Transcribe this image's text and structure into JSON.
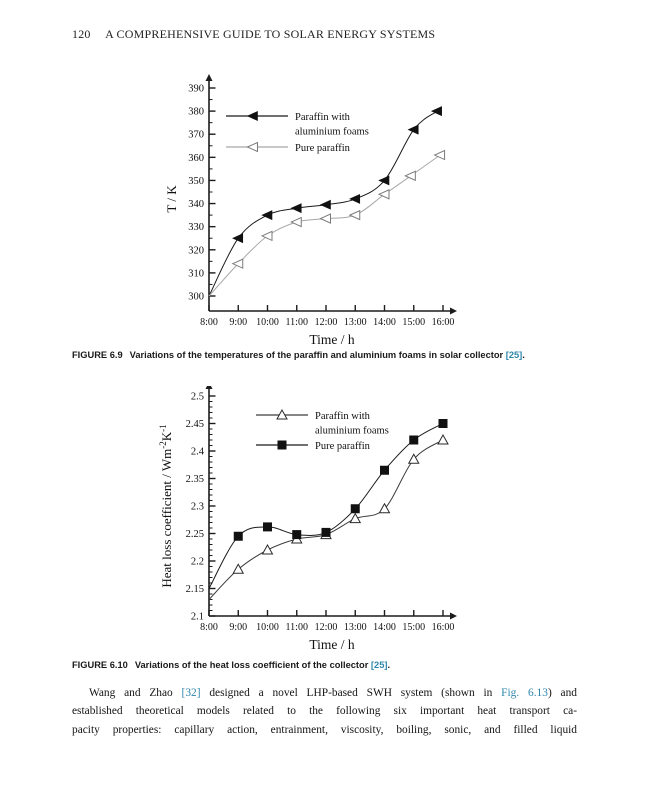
{
  "header": {
    "page_number": "120",
    "running_title": "A COMPREHENSIVE GUIDE TO SOLAR ENERGY SYSTEMS"
  },
  "figures": {
    "fig69": {
      "label": "FIGURE 6.9",
      "caption": "Variations of the temperatures of the paraffin and aluminium foams in solar collector",
      "ref": "[25]",
      "after_ref": "."
    },
    "fig610": {
      "label": "FIGURE 6.10",
      "caption": "Variations of the heat loss coefficient of the collector",
      "ref": "[25]",
      "after_ref": "."
    }
  },
  "paragraph": {
    "lines": [
      {
        "indent": true,
        "segments": [
          {
            "t": "Wang and Zhao "
          },
          {
            "t": "[32]",
            "link": true
          },
          {
            "t": " designed a novel LHP-based SWH system (shown in "
          },
          {
            "t": "Fig. 6.13",
            "link": true
          },
          {
            "t": ") and"
          }
        ]
      },
      {
        "segments": [
          {
            "t": "established theoretical models related to the following six important heat transport ca-"
          }
        ]
      },
      {
        "segments": [
          {
            "t": "pacity properties: capillary action, entrainment, viscosity, boiling, sonic, and filled liquid"
          }
        ]
      }
    ]
  },
  "colors": {
    "link_teal": "#2e86ab",
    "axis": "#1c1c1c",
    "pure_paraffin_gray": "#a8a8a8"
  },
  "chart_data": [
    {
      "type": "line",
      "title": "",
      "xlabel": "Time / h",
      "ylabel": "T / K",
      "ylabel_parts": [
        {
          "t": "T / K"
        }
      ],
      "xlim": [
        8,
        16
      ],
      "ylim": [
        300,
        390
      ],
      "x_tick_values": [
        8,
        9,
        10,
        11,
        12,
        13,
        14,
        15,
        16
      ],
      "x_ticks": [
        "8:00",
        "9:00",
        "10:00",
        "11:00",
        "12:00",
        "13:00",
        "14:00",
        "15:00",
        "16:00"
      ],
      "y_ticks": [
        300,
        310,
        320,
        330,
        340,
        350,
        360,
        370,
        380,
        390
      ],
      "y_minor_step": 5,
      "grid": false,
      "legend_position": "upper-left-inside",
      "series": [
        {
          "name": "Paraffin with aluminium foams",
          "legend_lines": [
            "Paraffin with",
            "aluminium foams"
          ],
          "marker": "triangle-left-filled",
          "line_color": "#1a1a1a",
          "marker_from": 1,
          "x": [
            8,
            9,
            10,
            11,
            12,
            13,
            14,
            15,
            15.8
          ],
          "y": [
            300,
            325,
            335,
            338,
            339.5,
            342,
            350,
            372,
            380
          ]
        },
        {
          "name": "Pure paraffin",
          "legend_lines": [
            "Pure paraffin"
          ],
          "marker": "triangle-left-open",
          "line_color": "#a8a8a8",
          "marker_from": 1,
          "x": [
            8,
            9,
            10,
            11,
            12,
            13,
            14,
            14.9,
            15.9
          ],
          "y": [
            300,
            314,
            326,
            332,
            333.5,
            335,
            344,
            352,
            361
          ]
        }
      ]
    },
    {
      "type": "line",
      "title": "",
      "xlabel": "Time / h",
      "ylabel": "Heat loss coefficient / Wm⁻²K⁻¹",
      "ylabel_parts": [
        {
          "t": "Heat loss coefficient / Wm"
        },
        {
          "t": "-2",
          "sup": true
        },
        {
          "t": "K"
        },
        {
          "t": "-1",
          "sup": true
        }
      ],
      "xlim": [
        8,
        16
      ],
      "ylim": [
        2.1,
        2.5
      ],
      "x_tick_values": [
        8,
        9,
        10,
        11,
        12,
        13,
        14,
        15,
        16
      ],
      "x_ticks": [
        "8:00",
        "9:00",
        "10:00",
        "11:00",
        "12:00",
        "13:00",
        "14:00",
        "15:00",
        "16:00"
      ],
      "y_ticks": [
        2.1,
        2.15,
        2.2,
        2.25,
        2.3,
        2.35,
        2.4,
        2.45,
        2.5
      ],
      "y_minor_step": 0.01,
      "grid": false,
      "legend_position": "upper-left-inside",
      "series": [
        {
          "name": "Paraffin with aluminium foams",
          "legend_lines": [
            "Paraffin with",
            "aluminium foams"
          ],
          "marker": "triangle-up-open",
          "line_color": "#3c3c3c",
          "marker_from": 1,
          "x": [
            8,
            9,
            10,
            11,
            12,
            13,
            14,
            15,
            16
          ],
          "y": [
            2.13,
            2.185,
            2.22,
            2.24,
            2.248,
            2.277,
            2.295,
            2.385,
            2.42
          ]
        },
        {
          "name": "Pure paraffin",
          "legend_lines": [
            "Pure paraffin"
          ],
          "marker": "square-filled",
          "line_color": "#1a1a1a",
          "marker_from": 1,
          "x": [
            8,
            9,
            10,
            11,
            12,
            13,
            14,
            15,
            16
          ],
          "y": [
            2.15,
            2.245,
            2.262,
            2.248,
            2.252,
            2.295,
            2.365,
            2.42,
            2.45
          ]
        }
      ]
    }
  ]
}
